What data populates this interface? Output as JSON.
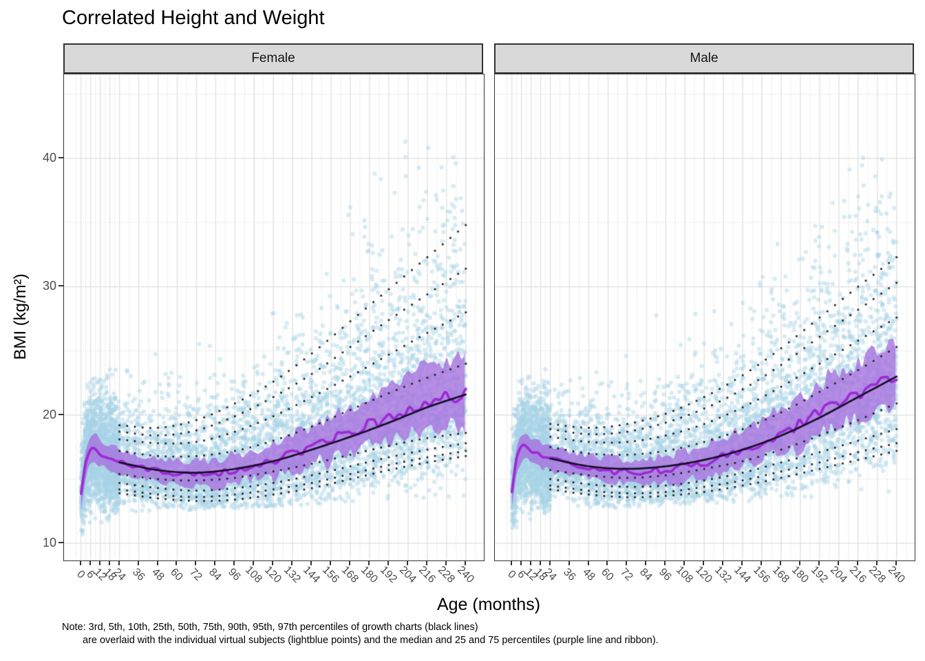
{
  "title": "Correlated Height and Weight",
  "axes": {
    "x_label": "Age (months)",
    "y_label": "BMI (kg/m²)",
    "x_ticks": [
      0,
      6,
      12,
      18,
      24,
      36,
      48,
      60,
      72,
      84,
      96,
      108,
      120,
      132,
      144,
      156,
      168,
      180,
      192,
      204,
      216,
      228,
      240
    ],
    "y_ticks": [
      10,
      20,
      30,
      40
    ]
  },
  "note": {
    "line1": "Note: 3rd, 5th, 10th, 25th, 50th, 75th, 90th, 95th, 97th percentiles of growth charts (black lines)",
    "line2": "are overlaid with the individual virtual subjects (lightblue points) and the median and 25 and 75 percentiles (purple line and ribbon)."
  },
  "chart_data": {
    "type": "scatter",
    "title": "Correlated Height and Weight",
    "xlabel": "Age (months)",
    "ylabel": "BMI (kg/m²)",
    "x_domain": [
      -10.6,
      251.3
    ],
    "y_domain": [
      8.66,
      46.55
    ],
    "x_ticks": [
      0,
      6,
      12,
      18,
      24,
      36,
      48,
      60,
      72,
      84,
      96,
      108,
      120,
      132,
      144,
      156,
      168,
      180,
      192,
      204,
      216,
      228,
      240
    ],
    "y_ticks": [
      10,
      20,
      30,
      40
    ],
    "y_minor_ticks": [
      15,
      25,
      35,
      45
    ],
    "grid": {
      "on": true,
      "major_color": "#e4e4e4",
      "minor_color": "#f0f0f0"
    },
    "legend_position": "none",
    "facets": [
      {
        "label": "Female",
        "key": "female"
      },
      {
        "label": "Male",
        "key": "male"
      }
    ],
    "percentile_labels": [
      "3rd",
      "5th",
      "10th",
      "25th",
      "50th",
      "75th",
      "90th",
      "95th",
      "97th"
    ],
    "percentile_months": [
      24,
      48,
      72,
      96,
      120,
      144,
      168,
      192,
      216,
      240
    ],
    "female": {
      "percentiles": {
        "p3": [
          13.9,
          13.5,
          13.3,
          13.4,
          13.8,
          14.3,
          15.0,
          15.7,
          16.3,
          16.8
        ],
        "p5": [
          14.2,
          13.8,
          13.6,
          13.8,
          14.2,
          14.7,
          15.4,
          16.1,
          16.7,
          17.2
        ],
        "p10": [
          14.7,
          14.3,
          14.1,
          14.3,
          14.7,
          15.3,
          16.0,
          16.7,
          17.3,
          17.8
        ],
        "p25": [
          15.4,
          15.0,
          14.9,
          15.1,
          15.6,
          16.2,
          16.9,
          17.6,
          18.2,
          18.6
        ],
        "p50": [
          16.3,
          15.7,
          15.5,
          15.8,
          16.4,
          17.3,
          18.3,
          19.4,
          20.6,
          21.6
        ],
        "p75": [
          17.2,
          16.8,
          16.8,
          17.2,
          18.0,
          19.1,
          20.4,
          21.7,
          22.9,
          24.0
        ],
        "p90": [
          18.1,
          17.8,
          17.9,
          18.7,
          19.9,
          21.4,
          23.0,
          24.7,
          26.4,
          28.0
        ],
        "p95": [
          18.7,
          18.4,
          18.8,
          19.9,
          21.4,
          23.2,
          25.3,
          27.4,
          29.4,
          31.4
        ],
        "p97": [
          19.2,
          19.0,
          19.6,
          20.9,
          22.6,
          24.8,
          27.3,
          29.8,
          32.3,
          34.8
        ]
      },
      "median_line": {
        "months": [
          0,
          3,
          7,
          12,
          18,
          24,
          36,
          48,
          60,
          72,
          84,
          96,
          108,
          120,
          132,
          144,
          156,
          168,
          180,
          192,
          204,
          216,
          228,
          240
        ],
        "values": [
          13.8,
          16.3,
          17.35,
          16.95,
          16.6,
          16.35,
          15.95,
          15.7,
          15.45,
          15.4,
          15.5,
          15.7,
          16.05,
          16.45,
          16.95,
          17.5,
          18.05,
          18.65,
          19.25,
          19.85,
          20.4,
          20.9,
          21.35,
          21.75
        ]
      },
      "ribbon_offset": {
        "months": [
          0,
          12,
          24,
          48,
          96,
          144,
          192,
          240
        ],
        "top": [
          0.8,
          1.05,
          1.0,
          0.95,
          1.1,
          1.6,
          2.4,
          3.0
        ],
        "bottom": [
          1.2,
          0.95,
          0.9,
          0.85,
          0.95,
          1.25,
          1.8,
          2.3
        ]
      },
      "scatter": {
        "seed": 987241,
        "n_young": 1650,
        "n_old": 4600,
        "young_max_month": 24,
        "sigma_base": 0.082,
        "sigma_growth": 0.105,
        "sigma_exp": 1.15,
        "upper_skew": 1.5,
        "lower_skew_young": 1.55,
        "cap_start": 22.5,
        "cap_end": 46.2,
        "cap_exp": 1.12,
        "floor_young": 10.5,
        "floor_start": 12.3,
        "floor_end": 13.6,
        "color": "rgba(168,212,231,0.46)",
        "radius": 3.1
      }
    },
    "male": {
      "percentiles": {
        "p3": [
          14.2,
          13.8,
          13.6,
          13.7,
          14.0,
          14.5,
          15.1,
          15.8,
          16.5,
          17.2
        ],
        "p5": [
          14.5,
          14.1,
          13.9,
          14.0,
          14.4,
          14.9,
          15.6,
          16.3,
          17.1,
          17.8
        ],
        "p10": [
          15.0,
          14.6,
          14.4,
          14.5,
          14.9,
          15.5,
          16.3,
          17.1,
          18.0,
          18.9
        ],
        "p25": [
          15.7,
          15.3,
          15.1,
          15.3,
          15.8,
          16.4,
          17.3,
          18.4,
          19.6,
          20.9
        ],
        "p50": [
          16.6,
          16.0,
          15.8,
          16.0,
          16.5,
          17.3,
          18.4,
          19.8,
          21.4,
          23.0
        ],
        "p75": [
          17.5,
          17.0,
          16.9,
          17.2,
          17.9,
          18.9,
          20.2,
          21.8,
          23.5,
          25.3
        ],
        "p90": [
          18.3,
          17.9,
          17.9,
          18.4,
          19.3,
          20.6,
          22.2,
          24.0,
          25.8,
          27.6
        ],
        "p95": [
          18.9,
          18.5,
          18.7,
          19.4,
          20.5,
          22.0,
          23.9,
          26.1,
          28.2,
          30.3
        ],
        "p97": [
          19.3,
          19.0,
          19.3,
          20.1,
          21.4,
          23.1,
          25.2,
          27.6,
          30.0,
          32.3
        ]
      },
      "median_line": {
        "months": [
          0,
          3,
          7,
          12,
          18,
          24,
          36,
          48,
          60,
          72,
          84,
          96,
          108,
          120,
          132,
          144,
          156,
          168,
          180,
          192,
          204,
          216,
          228,
          240
        ],
        "values": [
          14.1,
          16.6,
          17.6,
          17.2,
          16.85,
          16.6,
          16.15,
          15.9,
          15.65,
          15.55,
          15.6,
          15.75,
          16.0,
          16.35,
          16.8,
          17.35,
          17.95,
          18.65,
          19.4,
          20.2,
          21.0,
          21.7,
          22.4,
          23.0
        ]
      },
      "ribbon_offset": {
        "months": [
          0,
          12,
          24,
          48,
          96,
          144,
          192,
          240
        ],
        "top": [
          0.8,
          1.05,
          1.0,
          0.95,
          1.1,
          1.5,
          2.1,
          2.75
        ],
        "bottom": [
          1.2,
          0.95,
          0.9,
          0.85,
          0.95,
          1.2,
          1.7,
          2.2
        ]
      },
      "scatter": {
        "seed": 55117,
        "n_young": 1650,
        "n_old": 4600,
        "young_max_month": 24,
        "sigma_base": 0.082,
        "sigma_growth": 0.095,
        "sigma_exp": 1.15,
        "upper_skew": 1.45,
        "lower_skew_young": 1.55,
        "cap_start": 23.0,
        "cap_end": 42.2,
        "cap_exp": 1.12,
        "floor_young": 10.3,
        "floor_start": 12.5,
        "floor_end": 13.8,
        "color": "rgba(168,212,231,0.46)",
        "radius": 3.1
      }
    },
    "style": {
      "point_color": "lightblue",
      "ribbon_color": "rgba(166,114,222,0.8)",
      "median_line_color": "#9c2bd4",
      "smooth_p50_color": "#170d28",
      "dotted_percentile_color": "#222222",
      "strip_fill": "#d9d9d9",
      "strip_border": "#333333",
      "panel_border": "#333333",
      "tick_label_color": "#4d4d4d",
      "background": "#ffffff"
    }
  }
}
